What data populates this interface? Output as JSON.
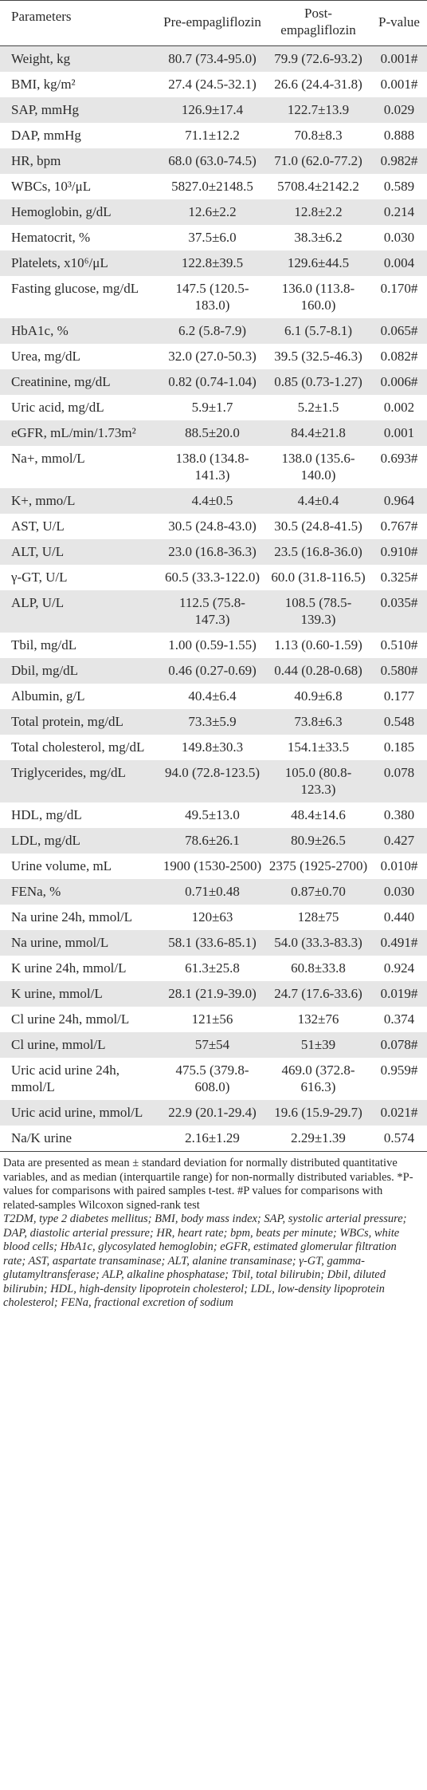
{
  "header": {
    "col1": "Parameters",
    "col2": "Pre-empagliflozin",
    "col3": "Post-empagliflozin",
    "col4": "P-value"
  },
  "rows": [
    {
      "param": "Weight, kg",
      "pre": "80.7 (73.4-95.0)",
      "post": "79.9 (72.6-93.2)",
      "p": "0.001#"
    },
    {
      "param": "BMI, kg/m²",
      "pre": "27.4 (24.5-32.1)",
      "post": "26.6 (24.4-31.8)",
      "p": "0.001#"
    },
    {
      "param": "SAP, mmHg",
      "pre": "126.9±17.4",
      "post": "122.7±13.9",
      "p": "0.029"
    },
    {
      "param": "DAP, mmHg",
      "pre": "71.1±12.2",
      "post": "70.8±8.3",
      "p": "0.888"
    },
    {
      "param": "HR, bpm",
      "pre": "68.0 (63.0-74.5)",
      "post": "71.0 (62.0-77.2)",
      "p": "0.982#"
    },
    {
      "param": "WBCs, 10³/μL",
      "pre": "5827.0±2148.5",
      "post": "5708.4±2142.2",
      "p": "0.589"
    },
    {
      "param": "Hemoglobin, g/dL",
      "pre": "12.6±2.2",
      "post": "12.8±2.2",
      "p": "0.214"
    },
    {
      "param": "Hematocrit, %",
      "pre": "37.5±6.0",
      "post": "38.3±6.2",
      "p": "0.030"
    },
    {
      "param": "Platelets, x10⁶/μL",
      "pre": "122.8±39.5",
      "post": "129.6±44.5",
      "p": "0.004"
    },
    {
      "param": "Fasting glucose, mg/dL",
      "pre": "147.5 (120.5-183.0)",
      "post": "136.0 (113.8-160.0)",
      "p": "0.170#"
    },
    {
      "param": "HbA1c, %",
      "pre": "6.2 (5.8-7.9)",
      "post": "6.1 (5.7-8.1)",
      "p": "0.065#"
    },
    {
      "param": "Urea, mg/dL",
      "pre": "32.0 (27.0-50.3)",
      "post": "39.5 (32.5-46.3)",
      "p": "0.082#"
    },
    {
      "param": "Creatinine, mg/dL",
      "pre": "0.82 (0.74-1.04)",
      "post": "0.85 (0.73-1.27)",
      "p": "0.006#"
    },
    {
      "param": "Uric acid, mg/dL",
      "pre": "5.9±1.7",
      "post": "5.2±1.5",
      "p": "0.002"
    },
    {
      "param": "eGFR, mL/min/1.73m²",
      "pre": "88.5±20.0",
      "post": "84.4±21.8",
      "p": "0.001"
    },
    {
      "param": "Na+, mmol/L",
      "pre": "138.0 (134.8-141.3)",
      "post": "138.0 (135.6-140.0)",
      "p": "0.693#"
    },
    {
      "param": "K+, mmo/L",
      "pre": "4.4±0.5",
      "post": "4.4±0.4",
      "p": "0.964"
    },
    {
      "param": "AST, U/L",
      "pre": "30.5 (24.8-43.0)",
      "post": "30.5 (24.8-41.5)",
      "p": "0.767#"
    },
    {
      "param": "ALT, U/L",
      "pre": "23.0 (16.8-36.3)",
      "post": "23.5 (16.8-36.0)",
      "p": "0.910#"
    },
    {
      "param": "γ-GT, U/L",
      "pre": "60.5 (33.3-122.0)",
      "post": "60.0 (31.8-116.5)",
      "p": "0.325#"
    },
    {
      "param": "ALP, U/L",
      "pre": "112.5 (75.8-147.3)",
      "post": "108.5 (78.5-139.3)",
      "p": "0.035#"
    },
    {
      "param": "Tbil, mg/dL",
      "pre": "1.00 (0.59-1.55)",
      "post": "1.13 (0.60-1.59)",
      "p": "0.510#"
    },
    {
      "param": "Dbil, mg/dL",
      "pre": "0.46 (0.27-0.69)",
      "post": "0.44 (0.28-0.68)",
      "p": "0.580#"
    },
    {
      "param": "Albumin, g/L",
      "pre": "40.4±6.4",
      "post": "40.9±6.8",
      "p": "0.177"
    },
    {
      "param": "Total protein, mg/dL",
      "pre": "73.3±5.9",
      "post": "73.8±6.3",
      "p": "0.548"
    },
    {
      "param": "Total cholesterol, mg/dL",
      "pre": "149.8±30.3",
      "post": "154.1±33.5",
      "p": "0.185"
    },
    {
      "param": "Triglycerides, mg/dL",
      "pre": "94.0 (72.8-123.5)",
      "post": "105.0 (80.8-123.3)",
      "p": "0.078"
    },
    {
      "param": "HDL, mg/dL",
      "pre": "49.5±13.0",
      "post": "48.4±14.6",
      "p": "0.380"
    },
    {
      "param": "LDL, mg/dL",
      "pre": "78.6±26.1",
      "post": "80.9±26.5",
      "p": "0.427"
    },
    {
      "param": "Urine volume, mL",
      "pre": "1900 (1530-2500)",
      "post": "2375 (1925-2700)",
      "p": "0.010#"
    },
    {
      "param": "FENa, %",
      "pre": "0.71±0.48",
      "post": "0.87±0.70",
      "p": "0.030"
    },
    {
      "param": "Na urine 24h, mmol/L",
      "pre": "120±63",
      "post": "128±75",
      "p": "0.440"
    },
    {
      "param": "Na urine, mmol/L",
      "pre": "58.1 (33.6-85.1)",
      "post": "54.0 (33.3-83.3)",
      "p": "0.491#"
    },
    {
      "param": "K urine 24h, mmol/L",
      "pre": "61.3±25.8",
      "post": "60.8±33.8",
      "p": "0.924"
    },
    {
      "param": "K urine, mmol/L",
      "pre": "28.1 (21.9-39.0)",
      "post": "24.7 (17.6-33.6)",
      "p": "0.019#"
    },
    {
      "param": "Cl urine 24h, mmol/L",
      "pre": "121±56",
      "post": "132±76",
      "p": "0.374"
    },
    {
      "param": "Cl urine, mmol/L",
      "pre": "57±54",
      "post": "51±39",
      "p": "0.078#"
    },
    {
      "param": "Uric acid urine 24h, mmol/L",
      "pre": "475.5 (379.8-608.0)",
      "post": "469.0 (372.8-616.3)",
      "p": "0.959#"
    },
    {
      "param": "Uric acid urine, mmol/L",
      "pre": "22.9 (20.1-29.4)",
      "post": "19.6 (15.9-29.7)",
      "p": "0.021#"
    },
    {
      "param": "Na/K urine",
      "pre": "2.16±1.29",
      "post": "2.29±1.39",
      "p": "0.574"
    }
  ],
  "footnote": "Data are presented as mean ± standard deviation for normally distributed quantitative variables, and as median (interquartile range) for non-normally distributed variables. *P-values for comparisons with paired samples t-test. #P values for comparisons with related-samples Wilcoxon signed-rank test",
  "abbreviations": "T2DM, type 2 diabetes mellitus; BMI, body mass index; SAP, systolic arterial pressure; DAP, diastolic arterial pressure; HR, heart rate; bpm, beats per minute; WBCs, white blood cells; HbA1c, glycosylated hemoglobin; eGFR, estimated glomerular filtration rate; AST, aspartate transaminase; ALT, alanine transaminase; γ-GT, gamma-glutamyltransferase; ALP, alkaline phosphatase; Tbil, total bilirubin; Dbil, diluted bilirubin; HDL, high-density lipoprotein cholesterol; LDL, low-density lipoprotein cholesterol; FENa, fractional excretion of sodium"
}
